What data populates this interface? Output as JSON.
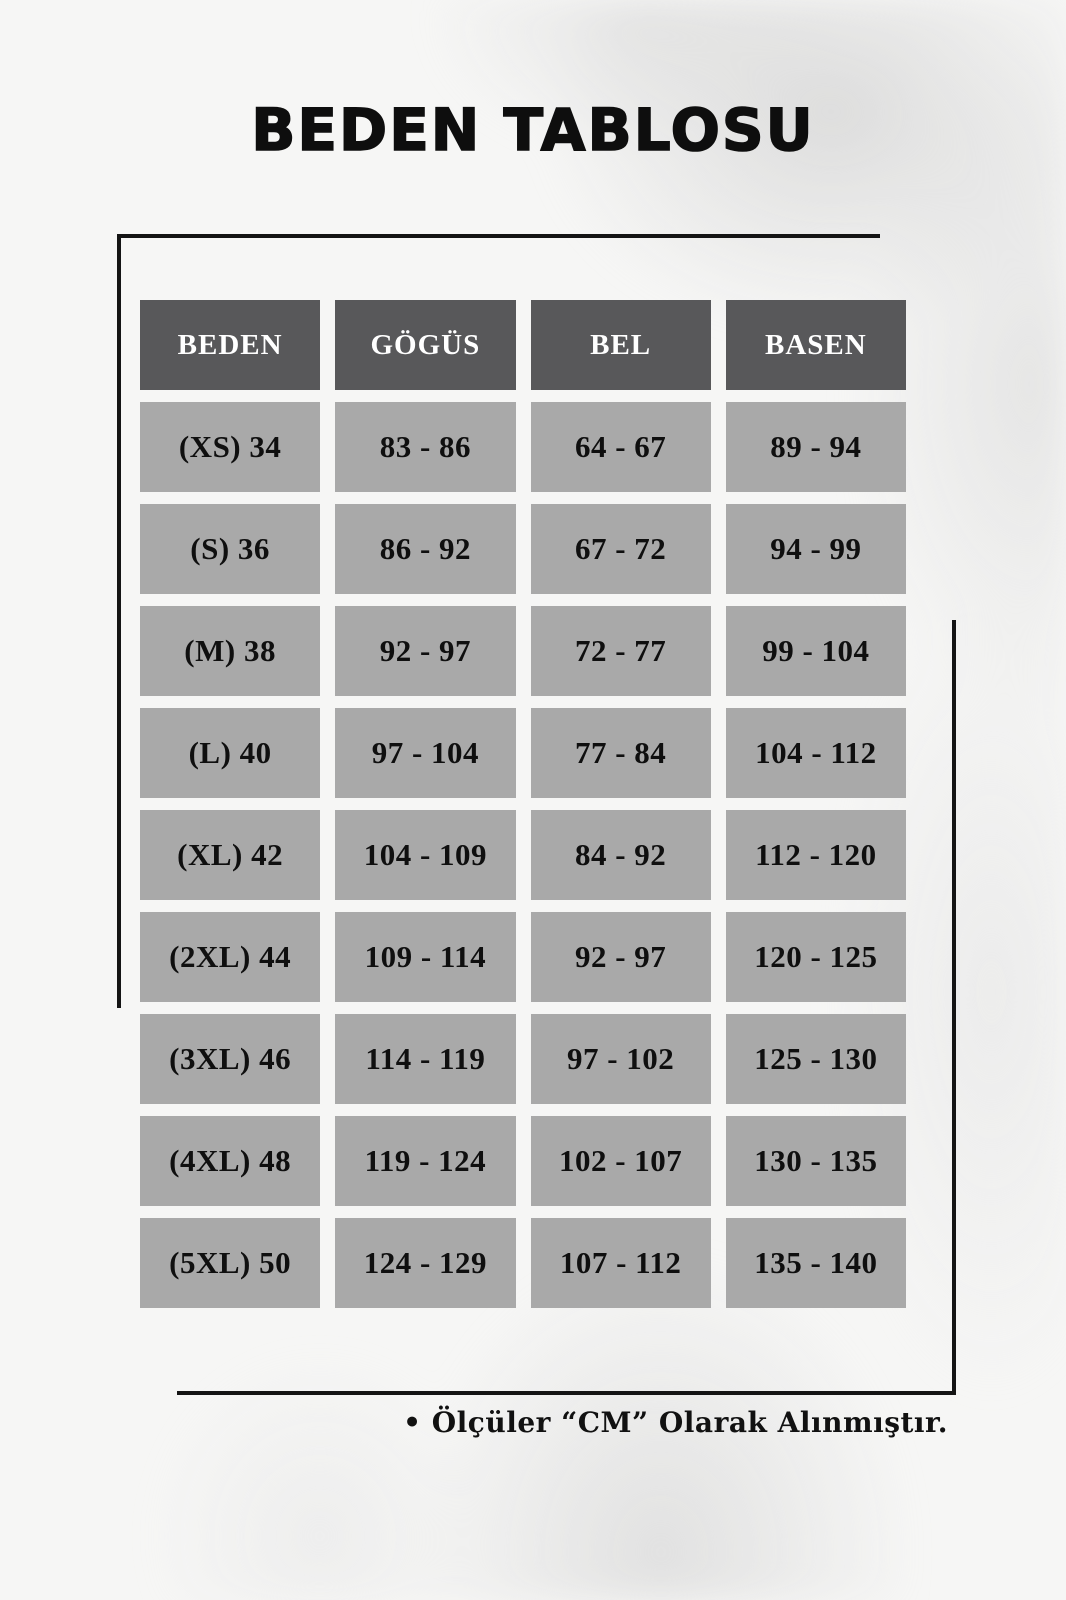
{
  "page": {
    "title": "BEDEN TABLOSU",
    "footnote": "• Ölçüler “CM” Olarak Alınmıştır."
  },
  "table": {
    "headers": [
      "BEDEN",
      "GÖGÜS",
      "BEL",
      "BASEN"
    ],
    "rows": [
      [
        "(XS) 34",
        "83 - 86",
        "64 - 67",
        "89 - 94"
      ],
      [
        "(S) 36",
        "86 - 92",
        "67 - 72",
        "94 - 99"
      ],
      [
        "(M) 38",
        "92 - 97",
        "72 - 77",
        "99 - 104"
      ],
      [
        "(L) 40",
        "97 - 104",
        "77 - 84",
        "104 - 112"
      ],
      [
        "(XL) 42",
        "104 - 109",
        "84 - 92",
        "112 - 120"
      ],
      [
        "(2XL) 44",
        "109 - 114",
        "92 - 97",
        "120 - 125"
      ],
      [
        "(3XL) 46",
        "114 - 119",
        "97 - 102",
        "125 - 130"
      ],
      [
        "(4XL) 48",
        "119 - 124",
        "102 - 107",
        "130 - 135"
      ],
      [
        "(5XL) 50",
        "124 - 129",
        "107 - 112",
        "135 - 140"
      ]
    ]
  },
  "colors": {
    "header_bg": "#58585a",
    "header_text": "#ffffff",
    "cell_bg": "#a9a9a9",
    "cell_text": "#0f0f0f",
    "page_bg": "#f6f6f5",
    "line": "#141414"
  }
}
